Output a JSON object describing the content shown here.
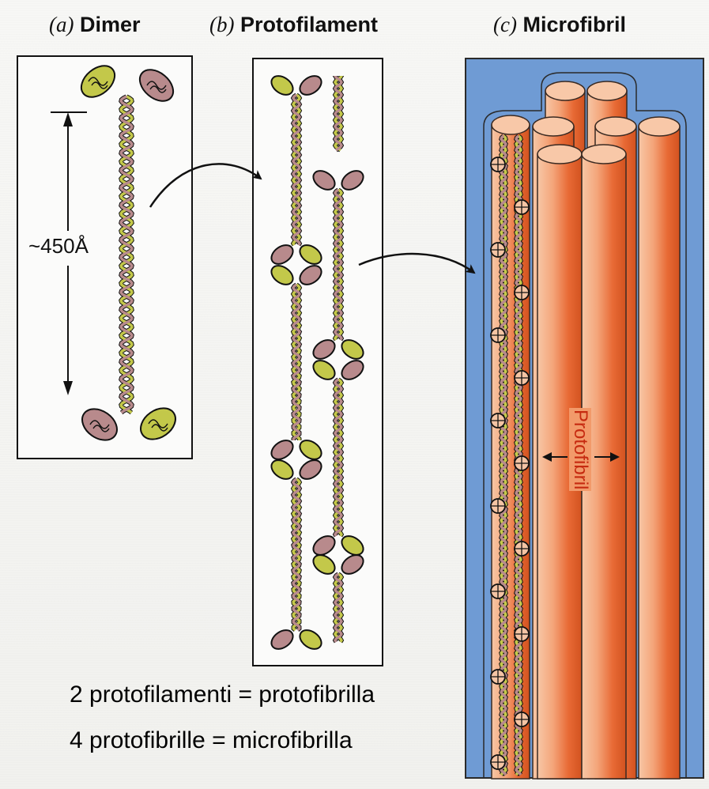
{
  "panels": {
    "a": {
      "letter": "(a)",
      "name": "Dimer"
    },
    "b": {
      "letter": "(b)",
      "name": "Protofilament"
    },
    "c": {
      "letter": "(c)",
      "name": "Microfibril"
    }
  },
  "labels": {
    "dimer_length": "~450Å",
    "protofibril": "Protofibril"
  },
  "captions": [
    "2 protofilamenti = protofibrilla",
    "4 protofibrille = microfibrilla"
  ],
  "colors": {
    "strand_green": "#c3c84a",
    "strand_mauve": "#b88a8c",
    "microfibril_background": "#6f9bd4",
    "cylinder_orange": "#ec7a4a",
    "label_red": "#c62a10"
  }
}
